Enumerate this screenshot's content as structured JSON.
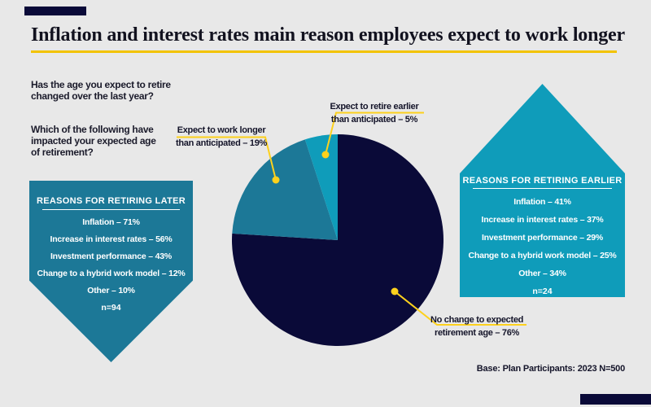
{
  "title": "Inflation and interest rates main reason employees expect to work longer",
  "questions": {
    "q1": "Has the age you expect to retire\nchanged over the last year?",
    "q2": "Which of the following have\nimpacted your expected age\nof retirement?"
  },
  "later_box": {
    "header": "REASONS FOR RETIRING LATER",
    "items": [
      "Inflation – 71%",
      "Increase in interest rates – 56%",
      "Investment performance – 43%",
      "Change to a hybrid work model – 12%",
      "Other – 10%"
    ],
    "n": "n=94"
  },
  "earlier_box": {
    "header": "REASONS FOR RETIRING EARLIER",
    "items": [
      "Inflation – 41%",
      "Increase in interest rates – 37%",
      "Investment performance – 29%",
      "Change to a hybrid work model – 25%",
      "Other – 34%"
    ],
    "n": "n=24"
  },
  "pie_labels": {
    "work_longer": "Expect to work longer\nthan anticipated – 19%",
    "retire_earlier": "Expect to retire earlier\nthan anticipated – 5%",
    "no_change": "No change to expected\nretirement age – 76%"
  },
  "base_note": "Base: Plan Participants: 2023 N=500",
  "colors": {
    "background": "#e8e8e8",
    "navy": "#0a0a38",
    "teal": "#1c7897",
    "cyan": "#0f9cba",
    "title_underline_yellow": "#f2c300",
    "callout_yellow": "#fdd11d",
    "text_dark": "#15152a",
    "white": "#ffffff"
  },
  "chart_data": {
    "type": "pie",
    "title": "Has the age you expect to retire changed over the last year?",
    "start_angle_deg": 0,
    "direction": "clockwise",
    "slices": [
      {
        "label": "No change to expected retirement age",
        "value": 76,
        "color": "#0a0a38"
      },
      {
        "label": "Expect to work longer than anticipated",
        "value": 19,
        "color": "#1c7897"
      },
      {
        "label": "Expect to retire earlier than anticipated",
        "value": 5,
        "color": "#0f9cba"
      }
    ],
    "reason_lists": [
      {
        "title": "REASONS FOR RETIRING LATER",
        "n": 94,
        "items": [
          {
            "label": "Inflation",
            "pct": 71
          },
          {
            "label": "Increase in interest rates",
            "pct": 56
          },
          {
            "label": "Investment performance",
            "pct": 43
          },
          {
            "label": "Change to a hybrid work model",
            "pct": 12
          },
          {
            "label": "Other",
            "pct": 10
          }
        ]
      },
      {
        "title": "REASONS FOR RETIRING EARLIER",
        "n": 24,
        "items": [
          {
            "label": "Inflation",
            "pct": 41
          },
          {
            "label": "Increase in interest rates",
            "pct": 37
          },
          {
            "label": "Investment performance",
            "pct": 29
          },
          {
            "label": "Change to a hybrid work model",
            "pct": 25
          },
          {
            "label": "Other",
            "pct": 34
          }
        ]
      }
    ],
    "base_note": "Base: Plan Participants: 2023 N=500"
  }
}
